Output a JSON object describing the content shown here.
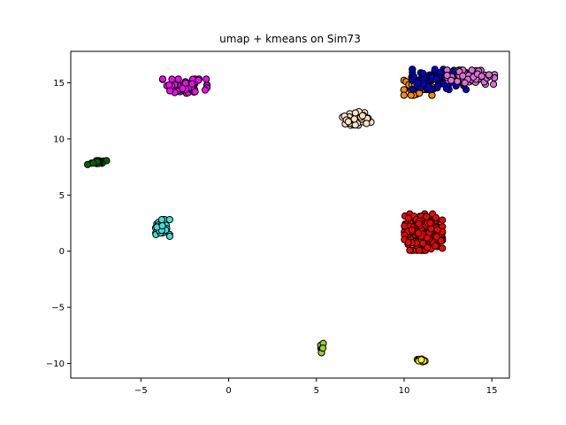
{
  "chart_data": {
    "type": "scatter",
    "title": "umap + kmeans on Sim73",
    "xlabel": "",
    "ylabel": "",
    "xlim": [
      -9,
      16
    ],
    "ylim": [
      -11.3,
      17.8
    ],
    "xticks": [
      -5,
      0,
      5,
      10,
      15
    ],
    "xtick_labels": [
      "−5",
      "0",
      "5",
      "10",
      "15"
    ],
    "yticks": [
      -10,
      -5,
      0,
      5,
      10,
      15
    ],
    "ytick_labels": [
      "−10",
      "−5",
      "0",
      "5",
      "10",
      "15"
    ],
    "grid": false,
    "legend": "none",
    "marker_edge_color": "#000000",
    "clusters": [
      {
        "color": "#ff00ff",
        "center": [
          -2.5,
          14.7
        ],
        "spread": [
          0.7,
          0.35
        ],
        "n": 70
      },
      {
        "color": "#006400",
        "center": [
          -7.5,
          7.9
        ],
        "spread": [
          0.3,
          0.12
        ],
        "n": 20
      },
      {
        "color": "#40e0d0",
        "center": [
          -3.9,
          2.0
        ],
        "spread": [
          0.3,
          0.45
        ],
        "n": 30
      },
      {
        "color": "#ffe4c4",
        "center": [
          7.3,
          11.8
        ],
        "spread": [
          0.45,
          0.35
        ],
        "n": 50
      },
      {
        "color": "#ff8c00",
        "center": [
          10.8,
          14.7
        ],
        "spread": [
          0.45,
          0.45
        ],
        "n": 45
      },
      {
        "color": "#0000cd",
        "center": [
          12.0,
          15.3
        ],
        "spread": [
          0.85,
          0.5
        ],
        "n": 90
      },
      {
        "color": "#da70d6",
        "center": [
          13.8,
          15.5
        ],
        "spread": [
          0.75,
          0.35
        ],
        "n": 70
      },
      {
        "color": "#ff0000",
        "center": [
          11.1,
          1.7
        ],
        "spread": [
          0.6,
          0.9
        ],
        "n": 220
      },
      {
        "color": "#9acd32",
        "center": [
          5.3,
          -8.5
        ],
        "spread": [
          0.05,
          0.3
        ],
        "n": 8
      },
      {
        "color": "#ffff00",
        "center": [
          11.0,
          -9.7
        ],
        "spread": [
          0.15,
          0.08
        ],
        "n": 12
      }
    ]
  }
}
